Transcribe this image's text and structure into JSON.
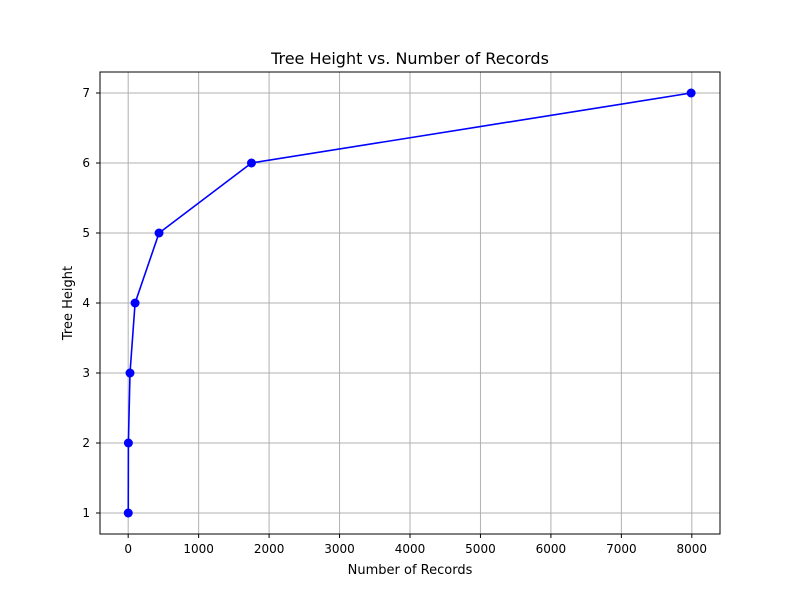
{
  "chart_data": {
    "type": "line",
    "title": "Tree Height vs. Number of Records",
    "xlabel": "Number of Records",
    "ylabel": "Tree Height",
    "xlim": [
      -400,
      8400
    ],
    "ylim": [
      0.7,
      7.3
    ],
    "x_ticks": [
      0,
      1000,
      2000,
      3000,
      4000,
      5000,
      6000,
      7000,
      8000
    ],
    "y_ticks": [
      1,
      2,
      3,
      4,
      5,
      6,
      7
    ],
    "grid": true,
    "series": [
      {
        "color": "#0000ff",
        "marker": "circle",
        "points": [
          {
            "x": 1,
            "y": 1
          },
          {
            "x": 3,
            "y": 2
          },
          {
            "x": 26,
            "y": 3
          },
          {
            "x": 98,
            "y": 4
          },
          {
            "x": 438,
            "y": 5
          },
          {
            "x": 1750,
            "y": 6
          },
          {
            "x": 7990,
            "y": 7
          }
        ]
      }
    ]
  }
}
